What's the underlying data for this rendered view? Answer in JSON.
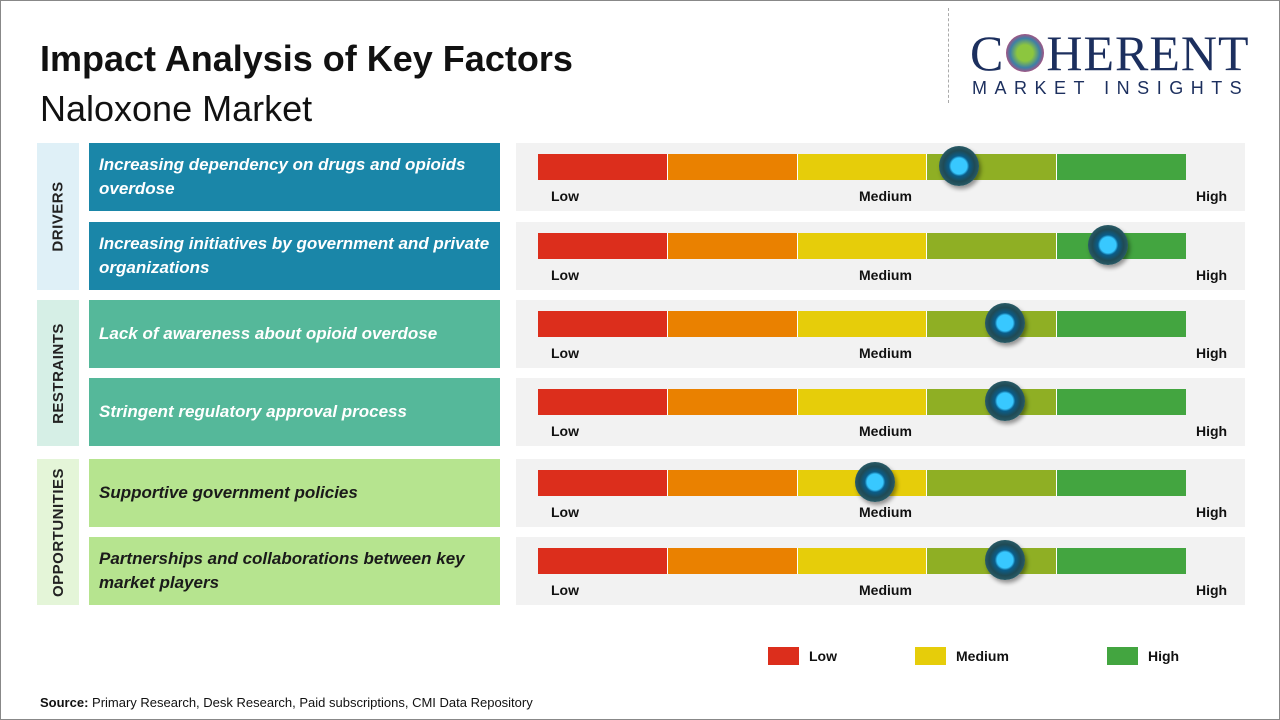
{
  "title": "Impact Analysis of Key Factors",
  "subtitle": "Naloxone Market",
  "logo": {
    "line1a": "C",
    "line1b": "HERENT",
    "line2": "MARKET INSIGHTS"
  },
  "scale_labels": {
    "low": "Low",
    "medium": "Medium",
    "high": "High"
  },
  "scale_colors": [
    "#dc2e1c",
    "#ea8100",
    "#e6cd0a",
    "#8faf24",
    "#43a540"
  ],
  "categories": [
    {
      "name": "DRIVERS",
      "bg": "#dff0f7",
      "box": "#1a86a8",
      "text": "#ffffff",
      "factors": [
        {
          "label": "Increasing dependency on drugs and opioids overdose",
          "impact": 0.65
        },
        {
          "label": "Increasing initiatives by government and private organizations",
          "impact": 0.88
        }
      ]
    },
    {
      "name": "RESTRAINTS",
      "bg": "#d6efe6",
      "box": "#55b89a",
      "text": "#ffffff",
      "factors": [
        {
          "label": "Lack of awareness about opioid overdose",
          "impact": 0.72
        },
        {
          "label": "Stringent regulatory approval process",
          "impact": 0.72
        }
      ]
    },
    {
      "name": "OPPORTUNITIES",
      "bg": "#e4f5d8",
      "box": "#b6e48f",
      "text": "#1a1a1a",
      "factors": [
        {
          "label": "Supportive government policies",
          "impact": 0.52
        },
        {
          "label": "Partnerships and collaborations between key market players",
          "impact": 0.72
        }
      ]
    }
  ],
  "legend": [
    {
      "label": "Low",
      "color": "#dc2e1c"
    },
    {
      "label": "Medium",
      "color": "#e6cd0a"
    },
    {
      "label": "High",
      "color": "#43a540"
    }
  ],
  "source": {
    "label": "Source:",
    "text": " Primary Research, Desk Research, Paid subscriptions, CMI Data Repository"
  }
}
